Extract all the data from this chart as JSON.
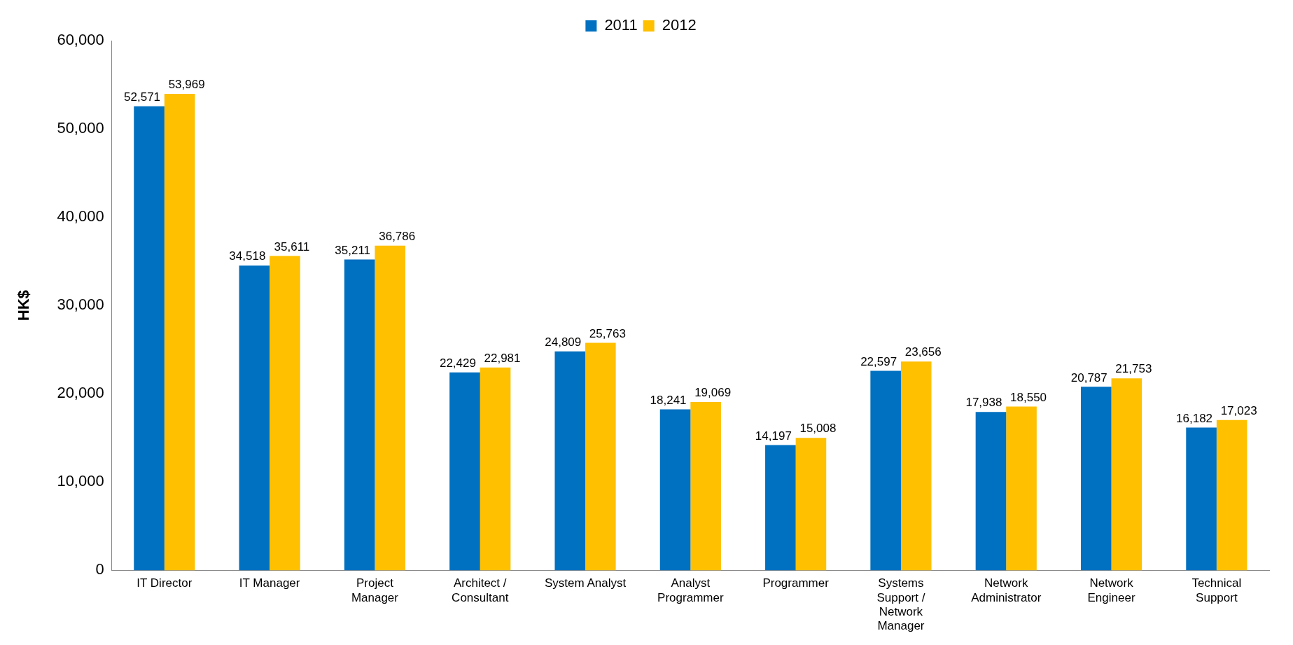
{
  "chart_data": {
    "type": "bar",
    "ylabel": "HK$",
    "categories": [
      "IT Director",
      "IT Manager",
      "Project Manager",
      "Architect / Consultant",
      "System Analyst",
      "Analyst Programmer",
      "Programmer",
      "Systems Support / Network Manager",
      "Network Administrator",
      "Network Engineer",
      "Technical Support"
    ],
    "series": [
      {
        "name": "2011",
        "color": "#0070c0",
        "values": [
          52571,
          34518,
          35211,
          22429,
          24809,
          18241,
          14197,
          22597,
          17938,
          20787,
          16182
        ],
        "value_labels": [
          "52,571",
          "34,518",
          "35,211",
          "22,429",
          "24,809",
          "18,241",
          "14,197",
          "22,597",
          "17,938",
          "20,787",
          "16,182"
        ]
      },
      {
        "name": "2012",
        "color": "#ffc000",
        "values": [
          53969,
          35611,
          36786,
          22981,
          25763,
          19069,
          15008,
          23656,
          18550,
          21753,
          17023
        ],
        "value_labels": [
          "53,969",
          "35,611",
          "36,786",
          "22,981",
          "25,763",
          "19,069",
          "15,008",
          "23,656",
          "18,550",
          "21,753",
          "17,023"
        ]
      }
    ],
    "ylim": [
      0,
      60000
    ],
    "yticks": [
      0,
      {
        "value": 10000,
        "label": "10,000"
      },
      {
        "value": 20000,
        "label": "20,000"
      },
      {
        "value": 30000,
        "label": "30,000"
      },
      {
        "value": 40000,
        "label": "40,000"
      },
      {
        "value": 50000,
        "label": "50,000"
      },
      {
        "value": 60000,
        "label": "60,000"
      }
    ],
    "grid": false,
    "legend": "top"
  }
}
